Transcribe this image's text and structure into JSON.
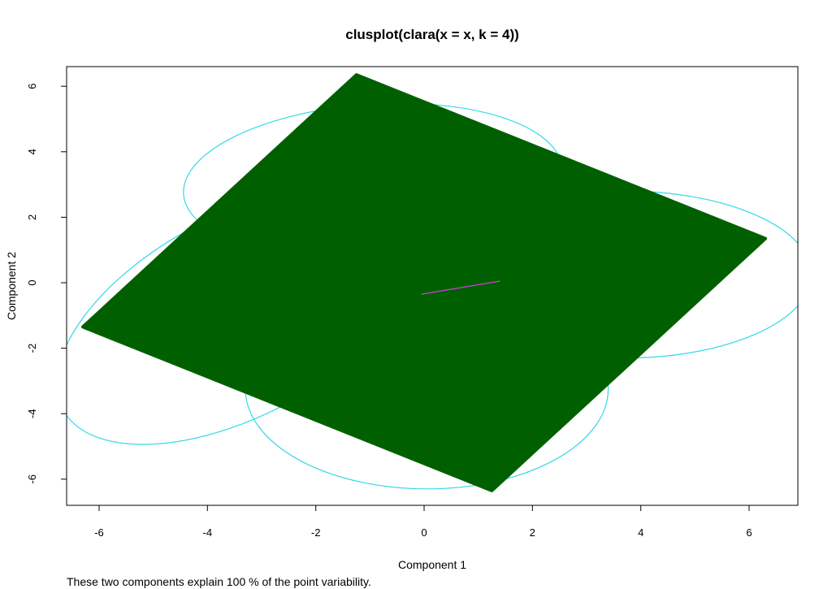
{
  "chart_data": {
    "type": "scatter",
    "title": "clusplot(clara(x = x, k = 4))",
    "xlabel": "Component 1",
    "ylabel": "Component 2",
    "subtitle": "These two components explain 100 % of the point variability.",
    "xlim": [
      -6.6,
      6.9
    ],
    "ylim": [
      -6.8,
      6.6
    ],
    "xticks": [
      -6,
      -4,
      -2,
      0,
      2,
      4,
      6
    ],
    "yticks": [
      -6,
      -4,
      -2,
      0,
      2,
      4,
      6
    ],
    "point_region": [
      [
        -1.25,
        6.35
      ],
      [
        6.3,
        1.35
      ],
      [
        1.25,
        -6.35
      ],
      [
        -6.3,
        -1.35
      ]
    ],
    "clusters": [
      {
        "center": [
          -0.95,
          3.1
        ],
        "rx": 3.5,
        "ry": 2.35,
        "angle": -4
      },
      {
        "center": [
          3.7,
          0.25
        ],
        "rx": 3.45,
        "ry": 2.55,
        "angle": 0
      },
      {
        "center": [
          0.05,
          -3.25
        ],
        "rx": 3.35,
        "ry": 3.05,
        "angle": 0
      },
      {
        "center": [
          -3.4,
          -1.0
        ],
        "rx": 3.7,
        "ry": 3.05,
        "angle": -28
      }
    ],
    "segments": [
      {
        "from": [
          -0.05,
          -0.35
        ],
        "to": [
          1.4,
          0.05
        ]
      }
    ],
    "colors": {
      "points": "#006000",
      "ellipses": "#33d8e8",
      "segments": "#d23fd2",
      "frame": "#000000"
    }
  }
}
